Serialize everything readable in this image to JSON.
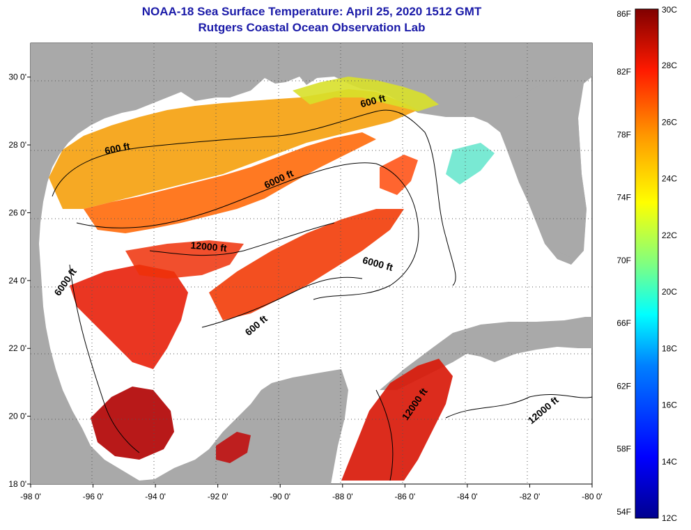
{
  "header": {
    "title_line1": "NOAA-18 Sea Surface Temperature:  April 25, 2020 1512 GMT",
    "title_line2": "Rutgers Coastal Ocean Observation Lab"
  },
  "map": {
    "region": "Gulf of Mexico",
    "lon_range": [
      -98,
      -80
    ],
    "lat_range": [
      18,
      31
    ],
    "lon_ticks": [
      "-98 0'",
      "-96 0'",
      "-94 0'",
      "-92 0'",
      "-90 0'",
      "-88 0'",
      "-86 0'",
      "-84 0'",
      "-82 0'",
      "-80 0'"
    ],
    "lat_ticks": [
      "18 0'",
      "20 0'",
      "22 0'",
      "24 0'",
      "26 0'",
      "28 0'",
      "30 0'"
    ],
    "land_color": "#a9a9a9",
    "cloud_color": "#ffffff",
    "contour_labels": [
      {
        "text": "600 ft",
        "lon": -95.2,
        "lat": 27.8,
        "angle": -12
      },
      {
        "text": "600 ft",
        "lon": -87.0,
        "lat": 29.2,
        "angle": -15
      },
      {
        "text": "6000 ft",
        "lon": -90.0,
        "lat": 26.9,
        "angle": -25
      },
      {
        "text": "12000 ft",
        "lon": -92.3,
        "lat": 24.9,
        "angle": 5
      },
      {
        "text": "6000 ft",
        "lon": -86.9,
        "lat": 24.4,
        "angle": 15
      },
      {
        "text": "6000 ft",
        "lon": -96.8,
        "lat": 23.9,
        "angle": -55
      },
      {
        "text": "600 ft",
        "lon": -90.7,
        "lat": 22.6,
        "angle": -40
      },
      {
        "text": "12000 ft",
        "lon": -85.6,
        "lat": 20.3,
        "angle": -55
      },
      {
        "text": "12000 ft",
        "lon": -81.5,
        "lat": 20.1,
        "angle": -40
      }
    ]
  },
  "colorbar": {
    "fahrenheit_labels": [
      "86F",
      "82F",
      "78F",
      "74F",
      "70F",
      "66F",
      "62F",
      "58F",
      "54F"
    ],
    "celsius_labels": [
      "30C",
      "28C",
      "26C",
      "24C",
      "22C",
      "20C",
      "18C",
      "16C",
      "14C",
      "12C"
    ],
    "min_c": 12,
    "max_c": 30,
    "colors": [
      "#00008f",
      "#0000ff",
      "#0080ff",
      "#00ffff",
      "#80ff80",
      "#ffff00",
      "#ff8000",
      "#ff0000",
      "#800000"
    ]
  }
}
